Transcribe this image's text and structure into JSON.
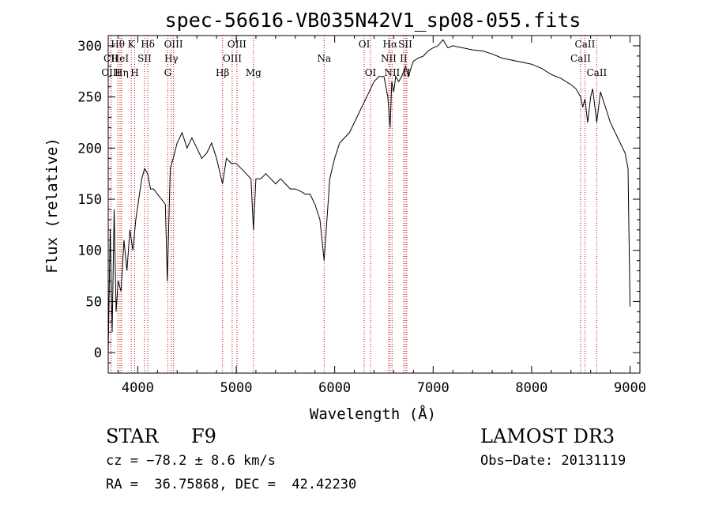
{
  "chart_data": {
    "type": "line",
    "title": "spec-56616-VB035N42V1_sp08-055.fits",
    "xlabel": "Wavelength (Å)",
    "ylabel": "Flux (relative)",
    "xlim": [
      3700,
      9100
    ],
    "ylim": [
      -20,
      310
    ],
    "x_ticks": [
      4000,
      5000,
      6000,
      7000,
      8000,
      9000
    ],
    "y_ticks": [
      0,
      50,
      100,
      150,
      200,
      250,
      300
    ],
    "x_tick_labels": [
      "4000",
      "5000",
      "6000",
      "7000",
      "8000",
      "9000"
    ],
    "y_tick_labels": [
      "0",
      "50",
      "100",
      "150",
      "200",
      "250",
      "300"
    ],
    "x_minor_step": 200,
    "y_minor_step": 10,
    "series_color": "#000000",
    "line_color": "#cc0000",
    "spectrum": {
      "x": [
        3700,
        3720,
        3740,
        3760,
        3780,
        3800,
        3830,
        3860,
        3890,
        3920,
        3950,
        3980,
        4010,
        4040,
        4070,
        4100,
        4130,
        4160,
        4200,
        4240,
        4280,
        4300,
        4330,
        4360,
        4400,
        4450,
        4500,
        4550,
        4600,
        4650,
        4700,
        4750,
        4800,
        4861,
        4900,
        4950,
        5000,
        5050,
        5100,
        5150,
        5175,
        5200,
        5250,
        5300,
        5350,
        5400,
        5450,
        5500,
        5550,
        5600,
        5650,
        5700,
        5750,
        5800,
        5850,
        5893,
        5950,
        6000,
        6050,
        6100,
        6150,
        6200,
        6250,
        6300,
        6350,
        6400,
        6450,
        6500,
        6540,
        6563,
        6580,
        6600,
        6620,
        6650,
        6680,
        6700,
        6720,
        6750,
        6780,
        6800,
        6850,
        6900,
        6950,
        7000,
        7050,
        7100,
        7150,
        7200,
        7300,
        7400,
        7500,
        7600,
        7700,
        7800,
        7900,
        8000,
        8100,
        8200,
        8300,
        8400,
        8450,
        8498,
        8520,
        8542,
        8570,
        8600,
        8620,
        8662,
        8700,
        8750,
        8800,
        8850,
        8900,
        8950,
        8980,
        9000
      ],
      "y": [
        0,
        120,
        20,
        140,
        40,
        70,
        60,
        110,
        80,
        120,
        100,
        130,
        150,
        170,
        180,
        175,
        160,
        160,
        155,
        150,
        145,
        70,
        180,
        190,
        205,
        215,
        200,
        210,
        200,
        190,
        195,
        205,
        190,
        165,
        190,
        185,
        185,
        180,
        175,
        170,
        120,
        170,
        170,
        175,
        170,
        165,
        170,
        165,
        160,
        160,
        158,
        155,
        155,
        145,
        130,
        90,
        170,
        190,
        205,
        210,
        215,
        225,
        235,
        245,
        255,
        265,
        270,
        270,
        250,
        220,
        265,
        255,
        270,
        265,
        270,
        275,
        280,
        270,
        280,
        285,
        288,
        290,
        295,
        298,
        300,
        306,
        298,
        300,
        298,
        296,
        295,
        292,
        288,
        286,
        284,
        282,
        278,
        272,
        268,
        262,
        258,
        250,
        240,
        248,
        225,
        250,
        258,
        225,
        255,
        240,
        225,
        215,
        205,
        195,
        180,
        45
      ]
    },
    "lines": [
      {
        "label": "Hθ",
        "x": 3797,
        "row": 0
      },
      {
        "label": "CII",
        "x": 3727,
        "row": 1
      },
      {
        "label": "OIII",
        "x": 3727,
        "row": 2
      },
      {
        "label": "K",
        "x": 3934,
        "row": 0
      },
      {
        "label": "Hδ",
        "x": 4102,
        "row": 0
      },
      {
        "label": "HeI",
        "x": 3820,
        "row": 1
      },
      {
        "label": "Hη",
        "x": 3835,
        "row": 2
      },
      {
        "label": "SII",
        "x": 4069,
        "row": 1
      },
      {
        "label": "H",
        "x": 3969,
        "row": 2
      },
      {
        "label": "OIII",
        "x": 4363,
        "row": 0
      },
      {
        "label": "Hγ",
        "x": 4340,
        "row": 1
      },
      {
        "label": "G",
        "x": 4305,
        "row": 2
      },
      {
        "label": "OIII",
        "x": 5007,
        "row": 0
      },
      {
        "label": "OIII",
        "x": 4959,
        "row": 1
      },
      {
        "label": "Hβ",
        "x": 4861,
        "row": 2
      },
      {
        "label": "Mg",
        "x": 5175,
        "row": 2
      },
      {
        "label": "Na",
        "x": 5893,
        "row": 1
      },
      {
        "label": "OI",
        "x": 6300,
        "row": 0
      },
      {
        "label": "OI",
        "x": 6364,
        "row": 2
      },
      {
        "label": "Hα",
        "x": 6563,
        "row": 0
      },
      {
        "label": "SII",
        "x": 6717,
        "row": 0
      },
      {
        "label": "NII",
        "x": 6548,
        "row": 1
      },
      {
        "label": "II",
        "x": 6700,
        "row": 1
      },
      {
        "label": "NII",
        "x": 6583,
        "row": 2
      },
      {
        "label": "II",
        "x": 6731,
        "row": 2
      },
      {
        "label": "CaII",
        "x": 8542,
        "row": 0
      },
      {
        "label": "CaII",
        "x": 8498,
        "row": 1
      },
      {
        "label": "CaII",
        "x": 8662,
        "row": 2
      }
    ]
  },
  "info": {
    "class": "STAR",
    "subclass": "F9",
    "survey": "LAMOST DR3",
    "cz": "cz = −78.2 ± 8.6 km/s",
    "obs_date": "Obs−Date: 20131119",
    "coords": "RA =  36.75868, DEC =  42.42230"
  }
}
